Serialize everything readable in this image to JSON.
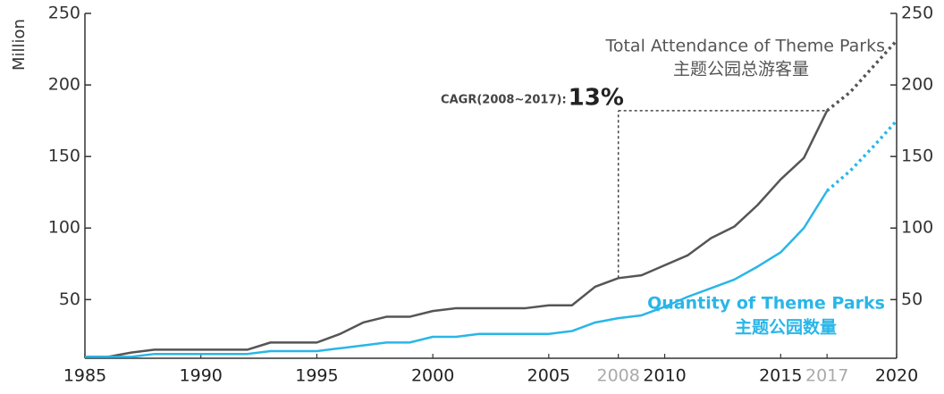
{
  "chart_data": {
    "type": "line",
    "y_label": "Million",
    "x": [
      1985,
      1986,
      1987,
      1988,
      1989,
      1990,
      1991,
      1992,
      1993,
      1994,
      1995,
      1996,
      1997,
      1998,
      1999,
      2000,
      2001,
      2002,
      2003,
      2004,
      2005,
      2006,
      2007,
      2008,
      2009,
      2010,
      2011,
      2012,
      2013,
      2014,
      2015,
      2016,
      2017,
      2018,
      2019,
      2020
    ],
    "xlim": [
      1985,
      2020
    ],
    "xticks": [
      1985,
      1990,
      1995,
      2000,
      2005,
      2008,
      2010,
      2015,
      2017,
      2020
    ],
    "xtick_colors": [
      "#222",
      "#222",
      "#222",
      "#222",
      "#222",
      "#aaa",
      "#222",
      "#222",
      "#aaa",
      "#222"
    ],
    "ylim": [
      9,
      250
    ],
    "yticks": [
      50,
      100,
      150,
      200,
      250
    ],
    "y2lim": [
      9,
      250
    ],
    "y2ticks": [
      50,
      100,
      150,
      200,
      250
    ],
    "series": [
      {
        "name": "Total Attendance of Theme Parks",
        "subname": "主题公园总游客量",
        "color": "#555555",
        "dotted_from": 32,
        "values": [
          10,
          10,
          13,
          15,
          15,
          15,
          15,
          15,
          20,
          20,
          20,
          26,
          34,
          38,
          38,
          42,
          44,
          44,
          44,
          44,
          46,
          46,
          59,
          65,
          67,
          74,
          81,
          93,
          101,
          116,
          134,
          149,
          182,
          195,
          213,
          231
        ]
      },
      {
        "name": "Quantity of Theme Parks",
        "subname": "主题公园数量",
        "color": "#29b6e8",
        "dotted_from": 32,
        "values": [
          10,
          10,
          10,
          12,
          12,
          12,
          12,
          12,
          14,
          14,
          14,
          16,
          18,
          20,
          20,
          24,
          24,
          26,
          26,
          26,
          26,
          28,
          34,
          37,
          39,
          45,
          52,
          58,
          64,
          73,
          83,
          100,
          126,
          140,
          157,
          175
        ]
      }
    ],
    "annotation": {
      "label": "CAGR(2008~2017):",
      "value_text": "13%",
      "from_x": 2008,
      "to_x": 2017
    }
  }
}
